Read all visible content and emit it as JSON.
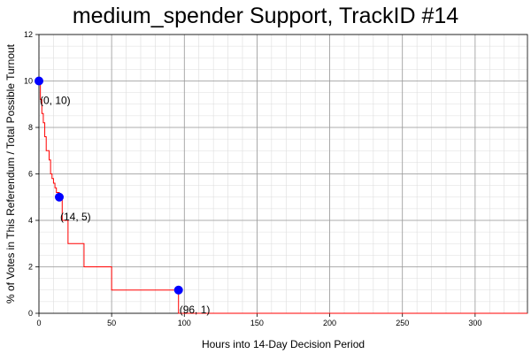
{
  "chart_data": {
    "type": "line",
    "title": "medium_spender Support, TrackID #14",
    "xlabel": "Hours into 14-Day Decision Period",
    "ylabel": "% of Votes in This Referendum / Total Possible Turnout",
    "xlim": [
      0,
      336
    ],
    "ylim": [
      0,
      12
    ],
    "x_ticks": [
      0,
      50,
      100,
      150,
      200,
      250,
      300
    ],
    "y_ticks": [
      0,
      2,
      4,
      6,
      8,
      10,
      12
    ],
    "grid": true,
    "line_color": "#ff0000",
    "marker_color": "#0000ff",
    "series": [
      {
        "step": true,
        "x": [
          0,
          1,
          2,
          3,
          4,
          5,
          6,
          7,
          8,
          9,
          10,
          11,
          12,
          14,
          16,
          18,
          20,
          22,
          31,
          32,
          50,
          51,
          95,
          96,
          336
        ],
        "y": [
          10,
          9.2,
          8.6,
          8.2,
          7.6,
          7.0,
          7.0,
          6.6,
          6.0,
          5.8,
          5.6,
          5.4,
          5.2,
          5.0,
          4.0,
          4.0,
          3.0,
          3.0,
          2.0,
          2.0,
          1.0,
          1.0,
          1.0,
          0,
          0
        ]
      }
    ],
    "highlighted_points": [
      {
        "x": 0,
        "y": 10,
        "label": "(0, 10)"
      },
      {
        "x": 14,
        "y": 5,
        "label": "(14, 5)"
      },
      {
        "x": 96,
        "y": 1,
        "label": "(96, 1)"
      }
    ]
  }
}
